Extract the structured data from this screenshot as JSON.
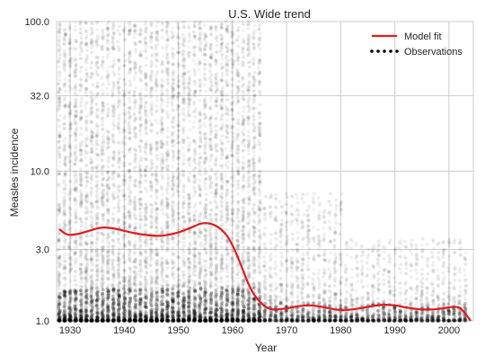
{
  "chart_data": {
    "type": "scatter",
    "title": "U.S. Wide trend",
    "xlabel": "Year",
    "ylabel": "Measles incidence",
    "x_range": [
      1927.5,
      2004.5
    ],
    "y_scale": "log",
    "ylim": [
      1.0,
      100.0
    ],
    "x_ticks": [
      1930,
      1940,
      1950,
      1960,
      1970,
      1980,
      1990,
      2000
    ],
    "x_tick_labels": [
      "1930",
      "1940",
      "1950",
      "1960",
      "1970",
      "1980",
      "1990",
      "2000"
    ],
    "y_ticks": [
      1.0,
      3.0,
      10.0,
      32.0,
      100.0
    ],
    "y_tick_labels": [
      "1.0",
      "3.0",
      "10.0",
      "32.0",
      "100.0"
    ],
    "grid": true,
    "legend_position": "top-right",
    "legend": [
      {
        "label": "Model fit",
        "marker": "line",
        "color": "#e41a1c"
      },
      {
        "label": "Observations",
        "marker": "dots",
        "color": "#000000"
      }
    ],
    "series": [
      {
        "name": "Model fit",
        "kind": "line",
        "color": "#e41a1c",
        "x": [
          1928,
          1929,
          1930,
          1932,
          1934,
          1936,
          1938,
          1940,
          1942,
          1944,
          1946,
          1948,
          1950,
          1952,
          1954,
          1955,
          1956,
          1957,
          1958,
          1959,
          1960,
          1961,
          1962,
          1963,
          1964,
          1965,
          1966,
          1967,
          1968,
          1969,
          1970,
          1971,
          1972,
          1974,
          1976,
          1978,
          1980,
          1982,
          1984,
          1986,
          1988,
          1990,
          1992,
          1994,
          1996,
          1998,
          2000,
          2001,
          2002,
          2003,
          2004
        ],
        "y": [
          4.1,
          3.85,
          3.75,
          3.85,
          4.05,
          4.2,
          4.15,
          4.0,
          3.85,
          3.75,
          3.7,
          3.75,
          3.9,
          4.15,
          4.45,
          4.5,
          4.45,
          4.3,
          4.05,
          3.7,
          3.2,
          2.65,
          2.15,
          1.75,
          1.5,
          1.35,
          1.25,
          1.2,
          1.19,
          1.2,
          1.21,
          1.23,
          1.25,
          1.27,
          1.25,
          1.21,
          1.18,
          1.19,
          1.22,
          1.26,
          1.28,
          1.27,
          1.23,
          1.2,
          1.19,
          1.2,
          1.23,
          1.24,
          1.22,
          1.12,
          1.0
        ]
      },
      {
        "name": "Observations",
        "kind": "scatter",
        "color": "#000000",
        "x_values": "one column per year, 1928 to 2003",
        "y_range": [
          1.0,
          100.0
        ],
        "dense_low": true
      }
    ]
  }
}
